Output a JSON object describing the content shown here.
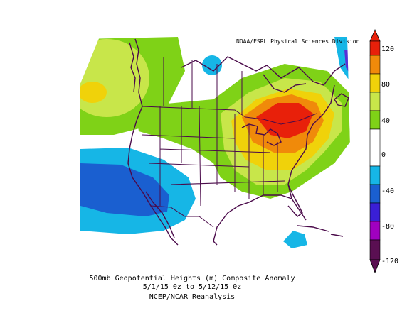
{
  "map": {
    "credit": "NOAA/ESRL Physical Sciences Division",
    "caption_line1": "500mb Geopotential Heights (m)   Composite Anomaly",
    "caption_line2": "5/1/15 0z  to 5/12/15 0z",
    "caption_line3": "NCEP/NCAR Reanalysis",
    "colors": {
      "n120": "#5a0f52",
      "n100": "#a000c0",
      "n80": "#3a1fd6",
      "n60": "#1a5fd0",
      "n40": "#16b6e6",
      "neutral": "#ffffff",
      "p40": "#7fd217",
      "p60": "#c8e64a",
      "p80": "#f0d20a",
      "p100": "#f08a0a",
      "p120": "#e8200a",
      "coast": "#4a0a4a"
    }
  },
  "colorbar": {
    "labels": [
      "120",
      "80",
      "40",
      "0",
      "-40",
      "-80",
      "-120"
    ]
  }
}
